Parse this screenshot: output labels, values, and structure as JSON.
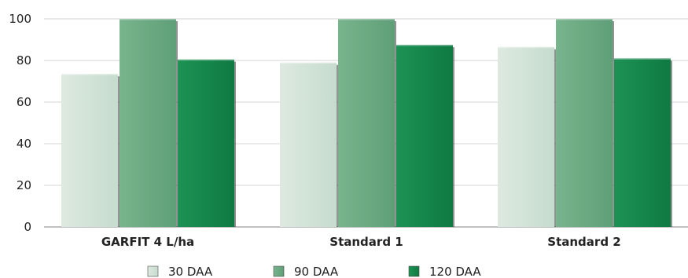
{
  "chart_data": {
    "type": "bar",
    "categories": [
      "GARFIT 4 L/ha",
      "Standard 1",
      "Standard 2"
    ],
    "series": [
      {
        "name": "30 DAA",
        "values": [
          73.5,
          79,
          86.5
        ],
        "color": "#cfe3d5"
      },
      {
        "name": "90 DAA",
        "values": [
          100,
          100,
          100
        ],
        "color": "#6aaa82"
      },
      {
        "name": "120 DAA",
        "values": [
          80.5,
          87.5,
          81
        ],
        "color": "#14854a"
      }
    ],
    "yticks": [
      "0",
      "20",
      "40",
      "60",
      "80",
      "100"
    ],
    "ylim": [
      0,
      100
    ],
    "grid": true,
    "legend": "bottom"
  }
}
